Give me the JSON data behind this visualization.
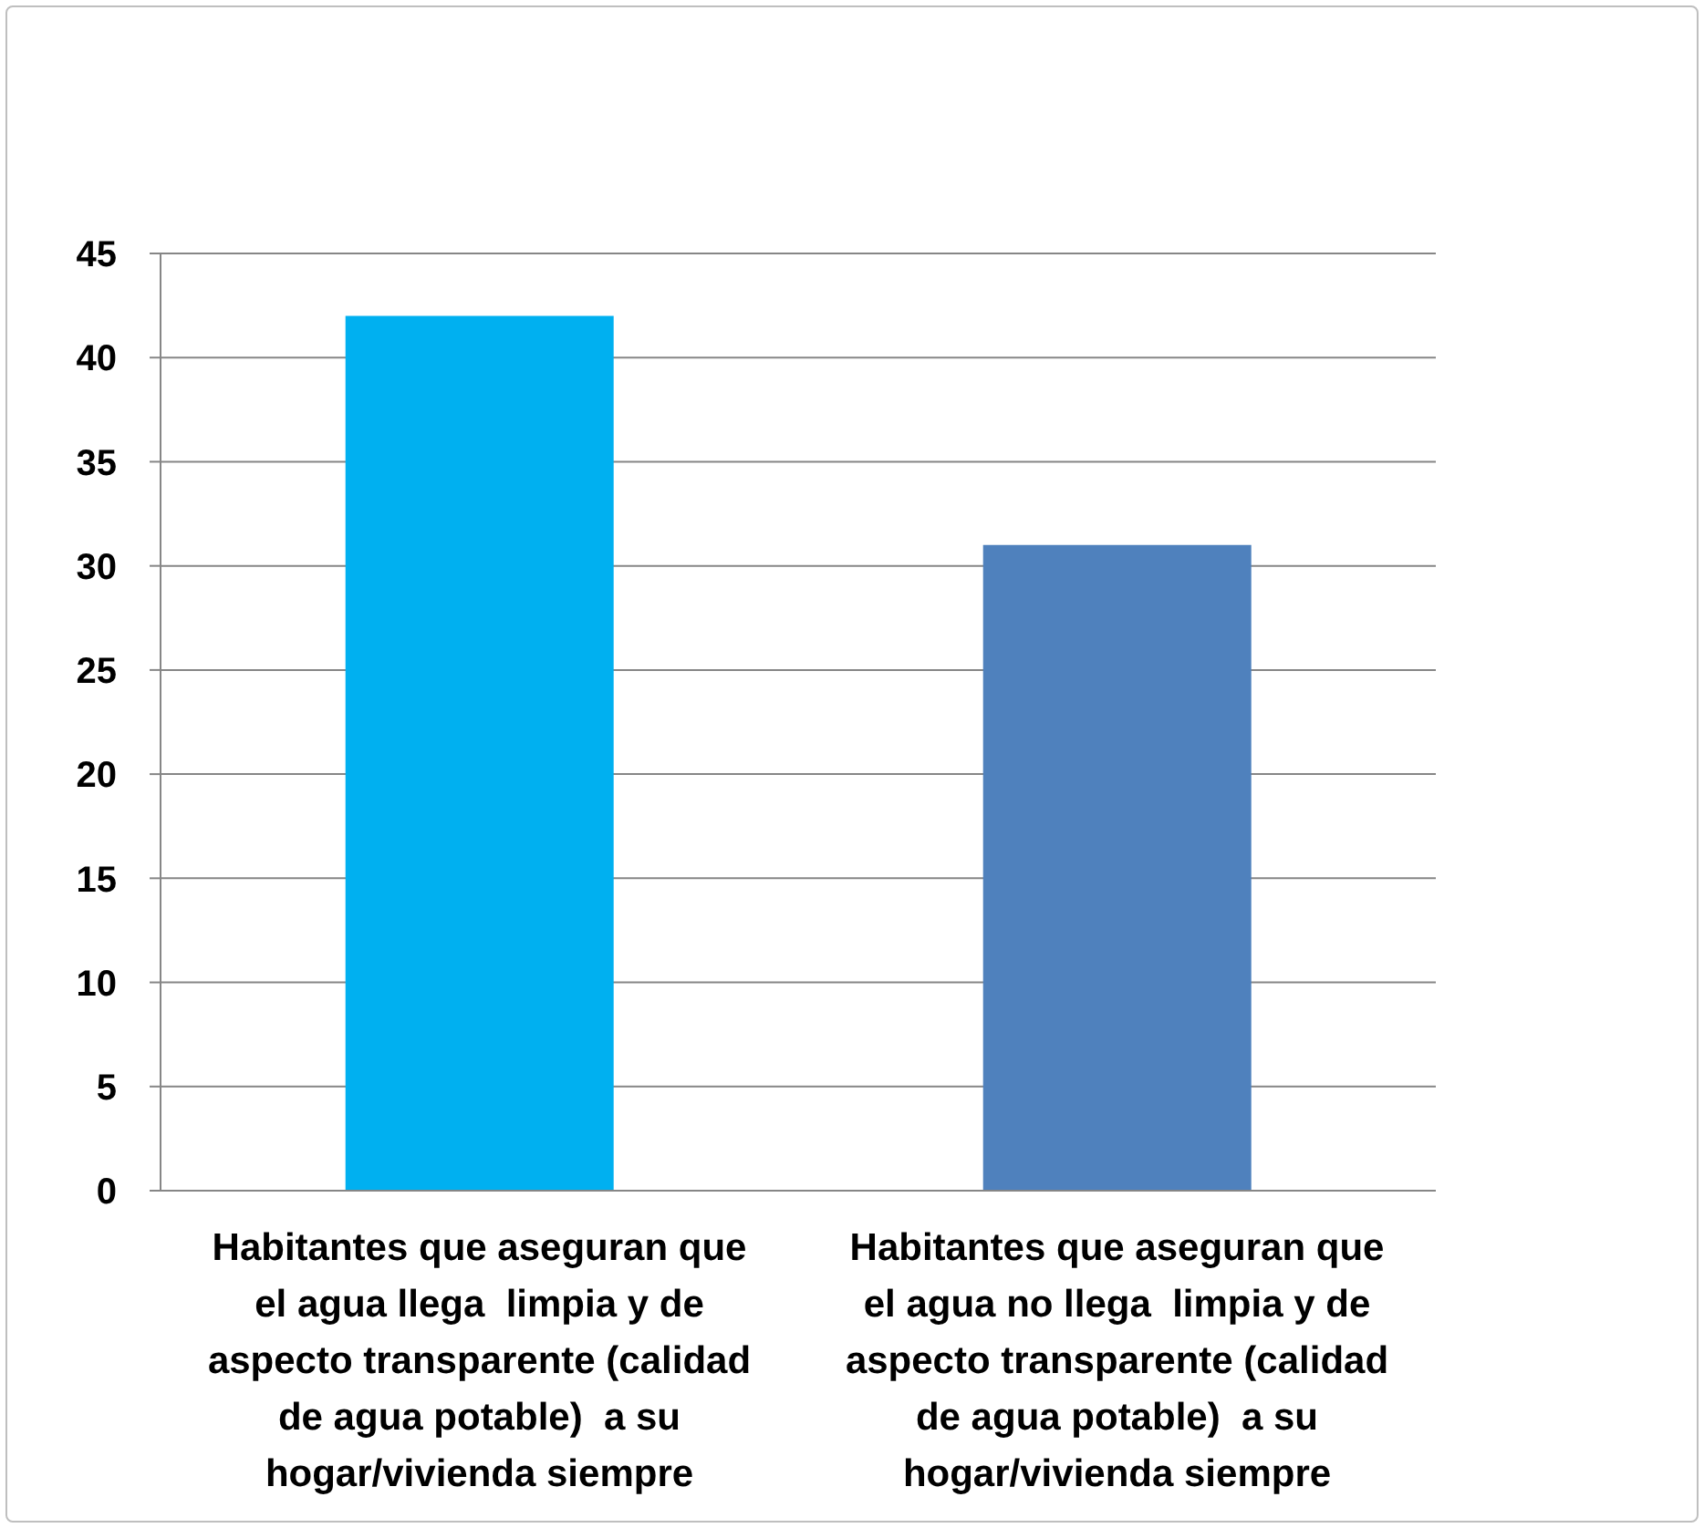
{
  "chart_data": {
    "type": "bar",
    "categories": [
      "Habitantes que aseguran que el agua llega  limpia y de aspecto transparente (calidad de agua potable)  a su hogar/vivienda siempre",
      "Habitantes que aseguran que el agua no llega  limpia y de aspecto transparente (calidad de agua potable)  a su hogar/vivienda siempre"
    ],
    "values": [
      42,
      31
    ],
    "colors": [
      "#00b0f0",
      "#4f81bd"
    ],
    "ylim": [
      0,
      45
    ],
    "yticks": [
      0,
      5,
      10,
      15,
      20,
      25,
      30,
      35,
      40,
      45
    ],
    "grid": "y"
  }
}
